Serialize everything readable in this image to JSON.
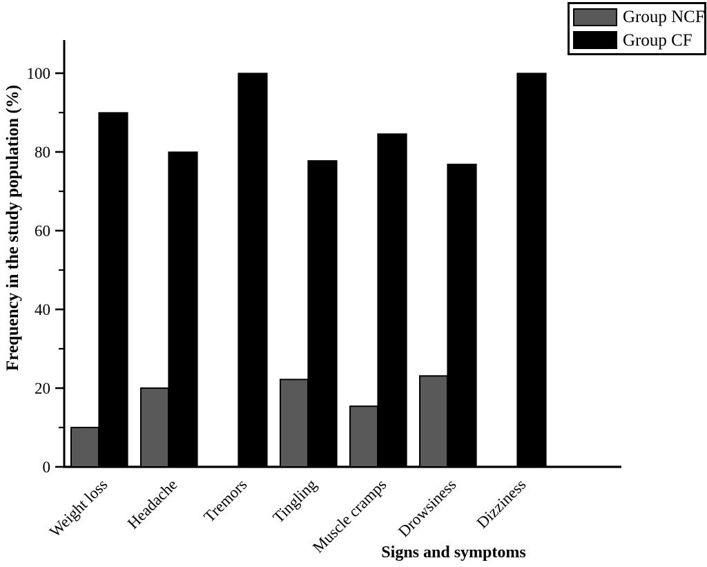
{
  "chart_data": {
    "type": "bar",
    "title": "",
    "categories": [
      "Weight loss",
      "Headache",
      "Tremors",
      "Tingling",
      "Muscle cramps",
      "Drowsiness",
      "Dizziness"
    ],
    "series": [
      {
        "name": "Group NCF",
        "color": "#595959",
        "values": [
          10,
          20,
          0,
          22.2,
          15.4,
          23.1,
          0
        ]
      },
      {
        "name": "Group CF",
        "color": "#000000",
        "values": [
          90,
          80,
          100,
          77.8,
          84.6,
          76.9,
          100
        ]
      }
    ],
    "xlabel": "Signs and symptoms",
    "ylabel": "Frequency in the study population (%)",
    "ylim": [
      0,
      108
    ],
    "yticks": [
      0,
      20,
      40,
      60,
      80,
      100
    ],
    "yminor": [
      10,
      30,
      50,
      70,
      90
    ],
    "grid": false,
    "legend_position": "top-right"
  },
  "legend": {
    "items": [
      {
        "label": "Group NCF",
        "color": "#595959"
      },
      {
        "label": "Group CF",
        "color": "#000000"
      }
    ]
  },
  "colors": {
    "background": "#ffffff",
    "axis": "#000000",
    "bar_ncf": "#595959",
    "bar_cf": "#000000"
  }
}
